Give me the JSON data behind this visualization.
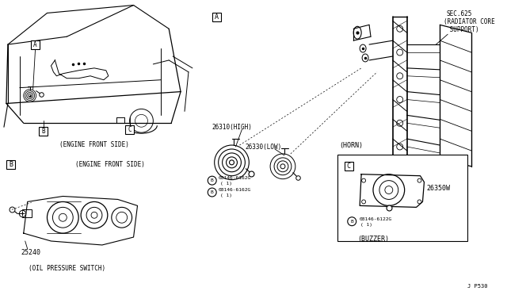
{
  "bg_color": "#ffffff",
  "line_color": "#000000",
  "labels": {
    "sec625": "SEC.625",
    "radiator1": "(RADIATOR CORE",
    "radiator2": " SUPPORT)",
    "horn_label": "(HORN)",
    "engine_front": "(ENGINE FRONT SIDE)",
    "oil_switch": "(OIL PRESSURE SWITCH)",
    "buzzer_label": "(BUZZER)",
    "part_A": "A",
    "part_B": "B",
    "part_C": "C",
    "part_26310": "26310(HIGH)",
    "part_26330": "26330(LOW)",
    "part_25240": "25240",
    "part_26350W": "26350W",
    "bolt1_text": "08146-6162G",
    "bolt1_qty": "( 1)",
    "bolt2_text": "08146-6162G",
    "bolt2_qty": "( 1)",
    "bolt3_text": "08146-6122G",
    "bolt3_qty": "( 1)",
    "footer": "J P530"
  }
}
